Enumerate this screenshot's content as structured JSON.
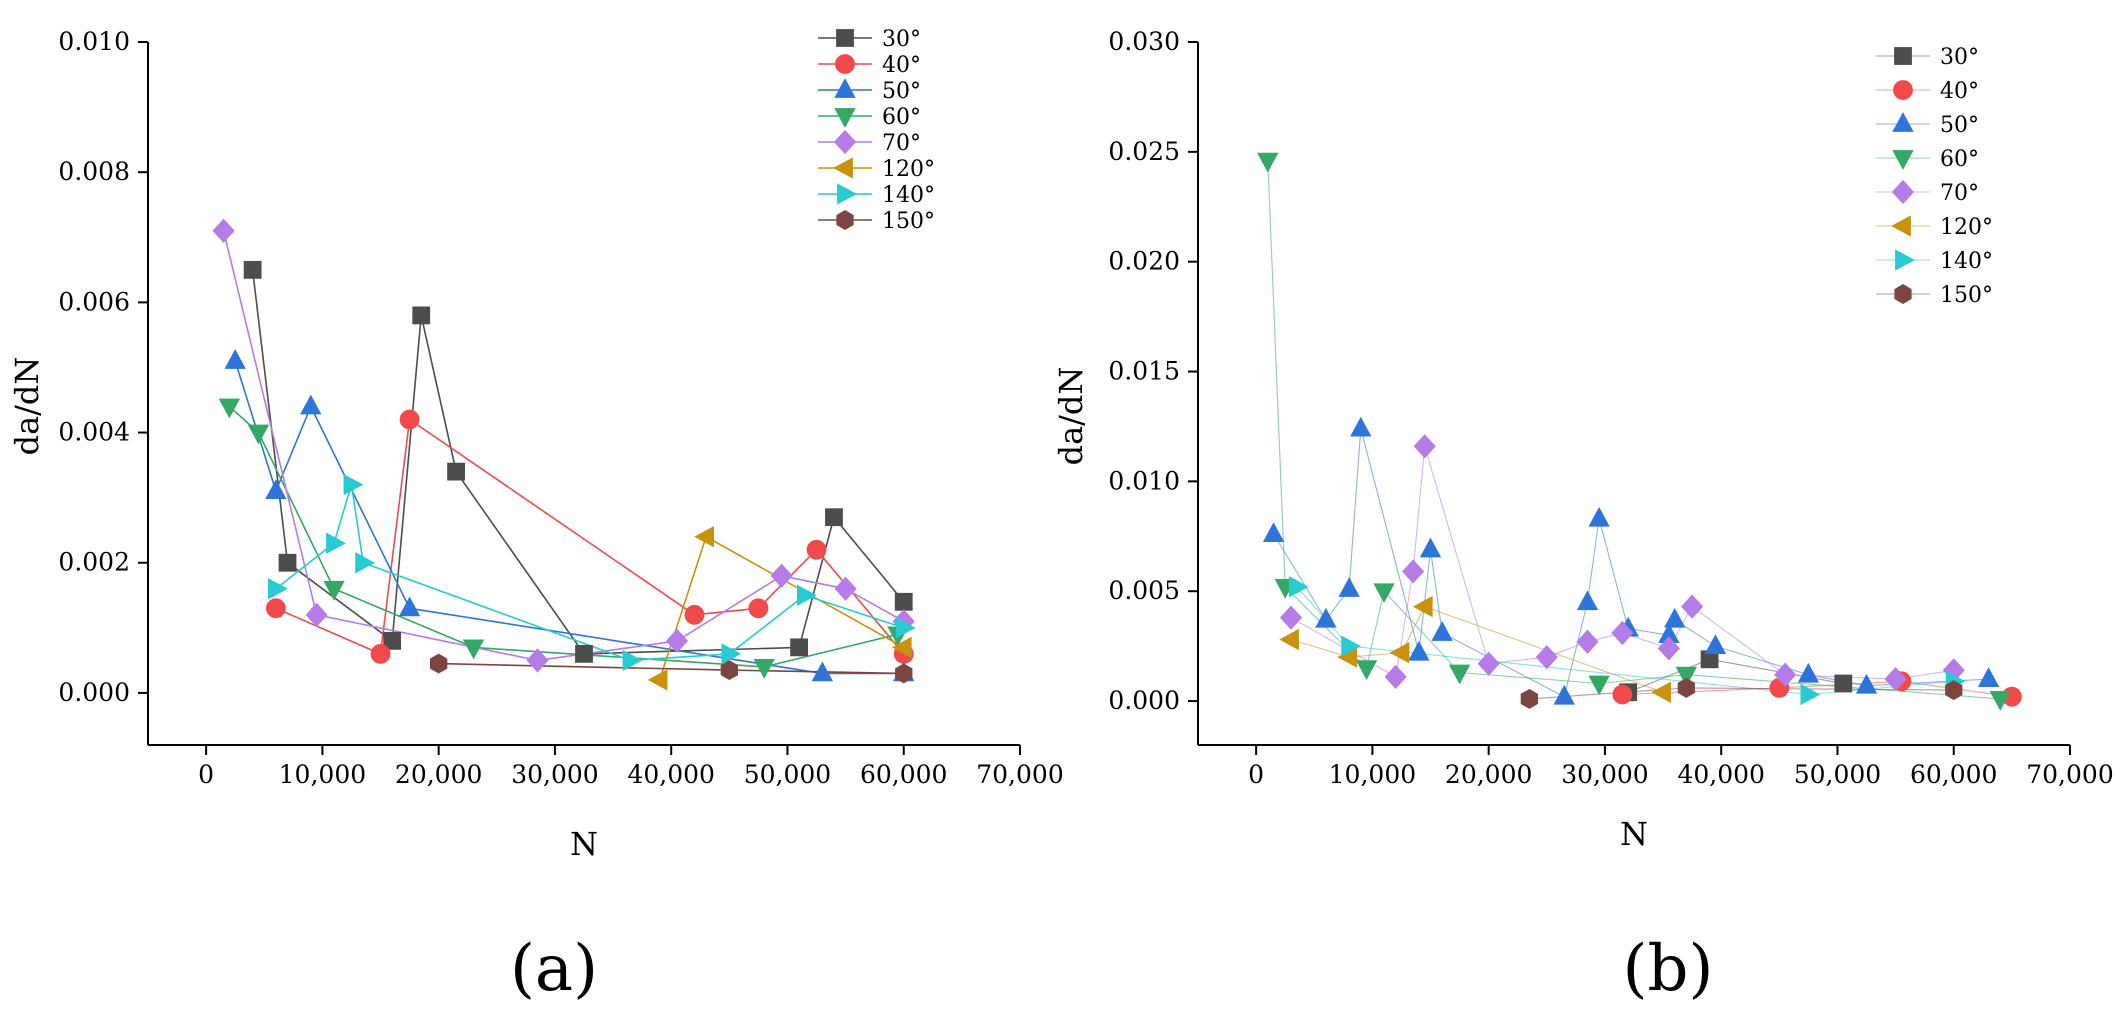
{
  "chart_data": [
    {
      "type": "line",
      "panel_label": "(a)",
      "xlabel": "N",
      "ylabel": "da/dN",
      "xlim": [
        -5000,
        70000
      ],
      "ylim": [
        -0.0008,
        0.01
      ],
      "xticks": [
        0,
        10000,
        20000,
        30000,
        40000,
        50000,
        60000,
        70000
      ],
      "xtick_labels": [
        "0",
        "10,000",
        "20,000",
        "30,000",
        "40,000",
        "50,000",
        "60,000",
        "70,000"
      ],
      "yticks": [
        0.0,
        0.002,
        0.004,
        0.006,
        0.008,
        0.01
      ],
      "ytick_labels": [
        "0.000",
        "0.002",
        "0.004",
        "0.006",
        "0.008",
        "0.010"
      ],
      "legend_position": "top-right",
      "series": [
        {
          "name": "30°",
          "color": "#4d4d4d",
          "marker": "square",
          "x": [
            4000,
            7000,
            16000,
            18500,
            21500,
            32500,
            51000,
            54000,
            60000
          ],
          "y": [
            0.0065,
            0.002,
            0.0008,
            0.0058,
            0.0034,
            0.0006,
            0.0007,
            0.0027,
            0.0014
          ]
        },
        {
          "name": "40°",
          "color": "#f04a4a",
          "marker": "circle",
          "x": [
            6000,
            15000,
            17500,
            42000,
            47500,
            52500,
            60000
          ],
          "y": [
            0.0013,
            0.0006,
            0.0042,
            0.0012,
            0.0013,
            0.0022,
            0.0006
          ]
        },
        {
          "name": "50°",
          "color": "#2e74d9",
          "marker": "triangle-up",
          "x": [
            2500,
            6000,
            9000,
            17500,
            53000,
            60000
          ],
          "y": [
            0.0051,
            0.0031,
            0.0044,
            0.0013,
            0.0003,
            0.0003
          ]
        },
        {
          "name": "60°",
          "color": "#34a865",
          "marker": "triangle-down",
          "x": [
            2000,
            4500,
            11000,
            23000,
            48000,
            59500
          ],
          "y": [
            0.0044,
            0.004,
            0.0016,
            0.0007,
            0.0004,
            0.0009
          ]
        },
        {
          "name": "70°",
          "color": "#b57be6",
          "marker": "diamond",
          "x": [
            1500,
            9500,
            28500,
            40500,
            49500,
            55000,
            60000
          ],
          "y": [
            0.0071,
            0.0012,
            0.0005,
            0.0008,
            0.0018,
            0.0016,
            0.0011
          ]
        },
        {
          "name": "120°",
          "color": "#c9920e",
          "marker": "triangle-left",
          "x": [
            39000,
            43000,
            60000
          ],
          "y": [
            0.0002,
            0.0024,
            0.0007
          ]
        },
        {
          "name": "140°",
          "color": "#27cbd1",
          "marker": "triangle-right",
          "x": [
            6000,
            11000,
            12500,
            13500,
            36500,
            45000,
            51500,
            60000
          ],
          "y": [
            0.0016,
            0.0023,
            0.0032,
            0.002,
            0.0005,
            0.0006,
            0.0015,
            0.001
          ]
        },
        {
          "name": "150°",
          "color": "#7d4542",
          "marker": "hexagon",
          "x": [
            20000,
            45000,
            60000
          ],
          "y": [
            0.00045,
            0.00035,
            0.0003
          ]
        }
      ]
    },
    {
      "type": "line",
      "panel_label": "(b)",
      "xlabel": "N",
      "ylabel": "da/dN",
      "xlim": [
        -5000,
        70000
      ],
      "ylim": [
        -0.002,
        0.03
      ],
      "xticks": [
        0,
        10000,
        20000,
        30000,
        40000,
        50000,
        60000,
        70000
      ],
      "xtick_labels": [
        "0",
        "10,000",
        "20,000",
        "30,000",
        "40,000",
        "50,000",
        "60,000",
        "70,000"
      ],
      "yticks": [
        0.0,
        0.005,
        0.01,
        0.015,
        0.02,
        0.025,
        0.03
      ],
      "ytick_labels": [
        "0.000",
        "0.005",
        "0.010",
        "0.015",
        "0.020",
        "0.025",
        "0.030"
      ],
      "legend_position": "top-right",
      "series": [
        {
          "name": "30°",
          "color": "#4d4d4d",
          "marker": "square",
          "x": [
            32000,
            39000,
            50500
          ],
          "y": [
            0.0004,
            0.0019,
            0.0008
          ]
        },
        {
          "name": "40°",
          "color": "#f04a4a",
          "marker": "circle",
          "x": [
            31500,
            45000,
            55500,
            65000
          ],
          "y": [
            0.0003,
            0.0006,
            0.0009,
            0.0002
          ]
        },
        {
          "name": "50°",
          "color": "#2e74d9",
          "marker": "triangle-up",
          "x": [
            1500,
            6000,
            8000,
            9000,
            14000,
            15000,
            16000,
            26500,
            28500,
            29500,
            32000,
            35500,
            36000,
            39500,
            47500,
            52500,
            63000
          ],
          "y": [
            0.0076,
            0.0037,
            0.0051,
            0.0124,
            0.0022,
            0.0069,
            0.0031,
            0.0002,
            0.0045,
            0.0083,
            0.0033,
            0.003,
            0.0037,
            0.0025,
            0.0012,
            0.0007,
            0.001
          ]
        },
        {
          "name": "60°",
          "color": "#34a865",
          "marker": "triangle-down",
          "x": [
            1000,
            2500,
            9500,
            11000,
            17500,
            29500,
            37000,
            64000
          ],
          "y": [
            0.0246,
            0.0052,
            0.0015,
            0.005,
            0.0013,
            0.0008,
            0.0012,
            0.0001
          ]
        },
        {
          "name": "70°",
          "color": "#b57be6",
          "marker": "diamond",
          "x": [
            3000,
            12000,
            13500,
            14500,
            20000,
            25000,
            28500,
            31500,
            35500,
            37500,
            45500,
            55000,
            60000
          ],
          "y": [
            0.0038,
            0.0011,
            0.0059,
            0.0116,
            0.0017,
            0.002,
            0.0027,
            0.0031,
            0.0024,
            0.0043,
            0.0012,
            0.001,
            0.0014
          ]
        },
        {
          "name": "120°",
          "color": "#c9920e",
          "marker": "triangle-left",
          "x": [
            3000,
            8000,
            12500,
            14500,
            35000
          ],
          "y": [
            0.0028,
            0.002,
            0.0022,
            0.0043,
            0.0004
          ]
        },
        {
          "name": "140°",
          "color": "#27cbd1",
          "marker": "triangle-right",
          "x": [
            3500,
            8000,
            47500,
            60000
          ],
          "y": [
            0.0052,
            0.0025,
            0.0003,
            0.0009
          ]
        },
        {
          "name": "150°",
          "color": "#7d4542",
          "marker": "hexagon",
          "x": [
            23500,
            37000,
            60000
          ],
          "y": [
            0.0001,
            0.0006,
            0.0005
          ]
        }
      ]
    }
  ]
}
